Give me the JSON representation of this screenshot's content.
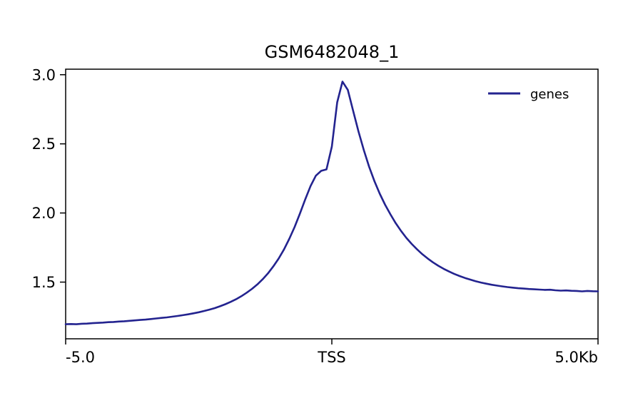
{
  "chart_data": {
    "type": "line",
    "title": "GSM6482048_1",
    "xlabel": "",
    "ylabel": "",
    "xlim": [
      -5.0,
      5.0
    ],
    "ylim": [
      1.09,
      3.04
    ],
    "x_unit": "Kb",
    "xtick_positions": [
      -5.0,
      0.0,
      5.0
    ],
    "xtick_labels": [
      "-5.0",
      "TSS",
      "5.0Kb"
    ],
    "ytick_positions": [
      1.5,
      2.0,
      2.5,
      3.0
    ],
    "ytick_labels": [
      "1.5",
      "2.0",
      "2.5",
      "3.0"
    ],
    "grid": false,
    "legend": {
      "position": "upper right",
      "entries": [
        "genes"
      ]
    },
    "series": [
      {
        "name": "genes",
        "color": "#23238f",
        "x": [
          -5.0,
          -4.9,
          -4.8,
          -4.7,
          -4.6,
          -4.5,
          -4.4,
          -4.3,
          -4.2,
          -4.1,
          -4.0,
          -3.9,
          -3.8,
          -3.7,
          -3.6,
          -3.5,
          -3.4,
          -3.3,
          -3.2,
          -3.1,
          -3.0,
          -2.9,
          -2.8,
          -2.7,
          -2.6,
          -2.5,
          -2.4,
          -2.3,
          -2.2,
          -2.1,
          -2.0,
          -1.9,
          -1.8,
          -1.7,
          -1.6,
          -1.5,
          -1.4,
          -1.3,
          -1.2,
          -1.1,
          -1.0,
          -0.9,
          -0.8,
          -0.7,
          -0.6,
          -0.5,
          -0.4,
          -0.3,
          -0.2,
          -0.1,
          0.0,
          0.1,
          0.2,
          0.3,
          0.4,
          0.5,
          0.6,
          0.7,
          0.8,
          0.9,
          1.0,
          1.1,
          1.2,
          1.3,
          1.4,
          1.5,
          1.6,
          1.7,
          1.8,
          1.9,
          2.0,
          2.1,
          2.2,
          2.3,
          2.4,
          2.5,
          2.6,
          2.7,
          2.8,
          2.9,
          3.0,
          3.1,
          3.2,
          3.3,
          3.4,
          3.5,
          3.6,
          3.7,
          3.8,
          3.9,
          4.0,
          4.1,
          4.2,
          4.3,
          4.4,
          4.5,
          4.6,
          4.7,
          4.8,
          4.9,
          5.0
        ],
        "values": [
          1.195,
          1.197,
          1.195,
          1.199,
          1.2,
          1.203,
          1.205,
          1.207,
          1.21,
          1.212,
          1.215,
          1.217,
          1.22,
          1.223,
          1.226,
          1.229,
          1.233,
          1.237,
          1.241,
          1.245,
          1.25,
          1.255,
          1.261,
          1.267,
          1.274,
          1.282,
          1.291,
          1.301,
          1.312,
          1.325,
          1.34,
          1.357,
          1.376,
          1.398,
          1.423,
          1.451,
          1.483,
          1.52,
          1.563,
          1.613,
          1.67,
          1.736,
          1.812,
          1.898,
          1.995,
          2.098,
          2.195,
          2.27,
          2.305,
          2.315,
          2.48,
          2.8,
          2.95,
          2.89,
          2.74,
          2.59,
          2.455,
          2.335,
          2.23,
          2.14,
          2.06,
          1.99,
          1.926,
          1.87,
          1.82,
          1.776,
          1.737,
          1.702,
          1.671,
          1.643,
          1.618,
          1.596,
          1.577,
          1.559,
          1.544,
          1.53,
          1.518,
          1.507,
          1.497,
          1.489,
          1.481,
          1.475,
          1.469,
          1.464,
          1.46,
          1.456,
          1.453,
          1.45,
          1.448,
          1.446,
          1.444,
          1.445,
          1.441,
          1.438,
          1.44,
          1.437,
          1.436,
          1.433,
          1.436,
          1.434,
          1.433
        ]
      }
    ]
  }
}
